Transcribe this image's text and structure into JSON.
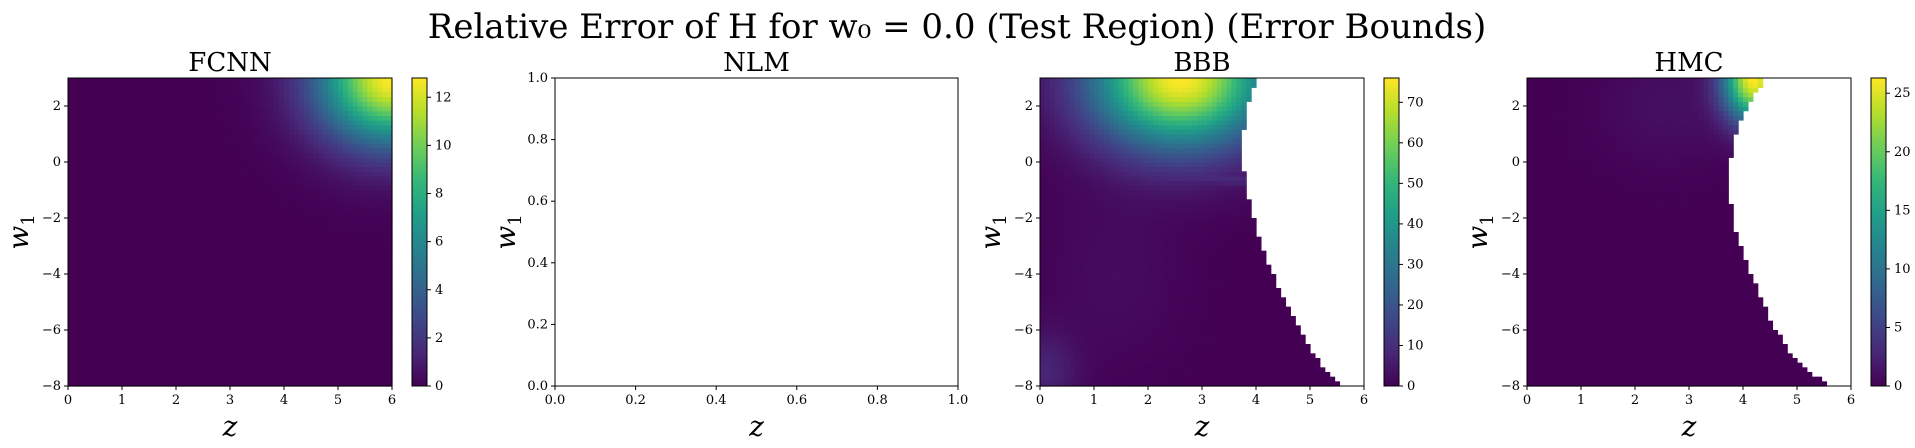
{
  "figure": {
    "title": "Relative Error of H for w₀ = 0.0 (Test Region) (Error Bounds)"
  },
  "colormap": "viridis",
  "colormap_stops": [
    "#440154",
    "#482878",
    "#3e4989",
    "#31688e",
    "#26828e",
    "#1f9e89",
    "#35b779",
    "#6ece58",
    "#b5de2b",
    "#fde725"
  ],
  "chart_data": [
    {
      "type": "heatmap",
      "title": "FCNN",
      "xlabel": "z",
      "ylabel": "w1",
      "xlim": [
        0,
        6
      ],
      "ylim": [
        -8,
        3
      ],
      "xticks": [
        0,
        1,
        2,
        3,
        4,
        5,
        6
      ],
      "yticks": [
        -8,
        -6,
        -4,
        -2,
        0,
        2
      ],
      "colorbar": {
        "min": 0,
        "max": 12.8,
        "ticks": [
          0,
          2,
          4,
          6,
          8,
          10,
          12
        ]
      },
      "peak_value": 12.8,
      "peak_location": {
        "z": 6,
        "w1": 3
      },
      "masked_region": "none"
    },
    {
      "type": "heatmap",
      "title": "NLM",
      "xlabel": "z",
      "ylabel": "w1",
      "xlim": [
        0.0,
        1.0
      ],
      "ylim": [
        0.0,
        1.0
      ],
      "xticks": [
        "0.0",
        "0.2",
        "0.4",
        "0.6",
        "0.8",
        "1.0"
      ],
      "yticks": [
        "0.0",
        "0.2",
        "0.4",
        "0.6",
        "0.8",
        "1.0"
      ],
      "colorbar": null,
      "note_empty": true
    },
    {
      "type": "heatmap",
      "title": "BBB",
      "xlabel": "z",
      "ylabel": "w1",
      "xlim": [
        0,
        6
      ],
      "ylim": [
        -8,
        3
      ],
      "xticks": [
        0,
        1,
        2,
        3,
        4,
        5,
        6
      ],
      "yticks": [
        -8,
        -6,
        -4,
        -2,
        0,
        2
      ],
      "colorbar": {
        "min": 0,
        "max": 76,
        "ticks": [
          0,
          10,
          20,
          30,
          40,
          50,
          60,
          70
        ]
      },
      "peak_value": 76,
      "peak_location": {
        "z": 3.9,
        "w1": 3
      },
      "masked_boundary": [
        {
          "w1": 3.0,
          "z": 4.0
        },
        {
          "w1": 2.0,
          "z": 3.85
        },
        {
          "w1": 1.0,
          "z": 3.75
        },
        {
          "w1": 0.0,
          "z": 3.75
        },
        {
          "w1": -0.8,
          "z": 3.8
        },
        {
          "w1": -2.0,
          "z": 3.95
        },
        {
          "w1": -3.0,
          "z": 4.1
        },
        {
          "w1": -4.0,
          "z": 4.3
        },
        {
          "w1": -5.0,
          "z": 4.55
        },
        {
          "w1": -6.0,
          "z": 4.8
        },
        {
          "w1": -7.0,
          "z": 5.1
        },
        {
          "w1": -7.6,
          "z": 5.4
        },
        {
          "w1": -8.0,
          "z": 5.6
        }
      ]
    },
    {
      "type": "heatmap",
      "title": "HMC",
      "xlabel": "z",
      "ylabel": "w1",
      "xlim": [
        0,
        6
      ],
      "ylim": [
        -8,
        3
      ],
      "xticks": [
        0,
        1,
        2,
        3,
        4,
        5,
        6
      ],
      "yticks": [
        -8,
        -6,
        -4,
        -2,
        0,
        2
      ],
      "colorbar": {
        "min": 0,
        "max": 26.3,
        "ticks": [
          0,
          5,
          10,
          15,
          20,
          25
        ]
      },
      "peak_value": 26.3,
      "peak_location": {
        "z": 4.2,
        "w1": 3
      },
      "masked_boundary": [
        {
          "w1": 3.0,
          "z": 4.4
        },
        {
          "w1": 2.0,
          "z": 4.1
        },
        {
          "w1": 1.0,
          "z": 3.85
        },
        {
          "w1": 0.0,
          "z": 3.75
        },
        {
          "w1": -1.0,
          "z": 3.75
        },
        {
          "w1": -2.0,
          "z": 3.8
        },
        {
          "w1": -3.0,
          "z": 3.95
        },
        {
          "w1": -4.0,
          "z": 4.15
        },
        {
          "w1": -5.0,
          "z": 4.35
        },
        {
          "w1": -6.0,
          "z": 4.6
        },
        {
          "w1": -7.0,
          "z": 4.95
        },
        {
          "w1": -7.6,
          "z": 5.3
        },
        {
          "w1": -8.0,
          "z": 5.6
        }
      ]
    }
  ]
}
